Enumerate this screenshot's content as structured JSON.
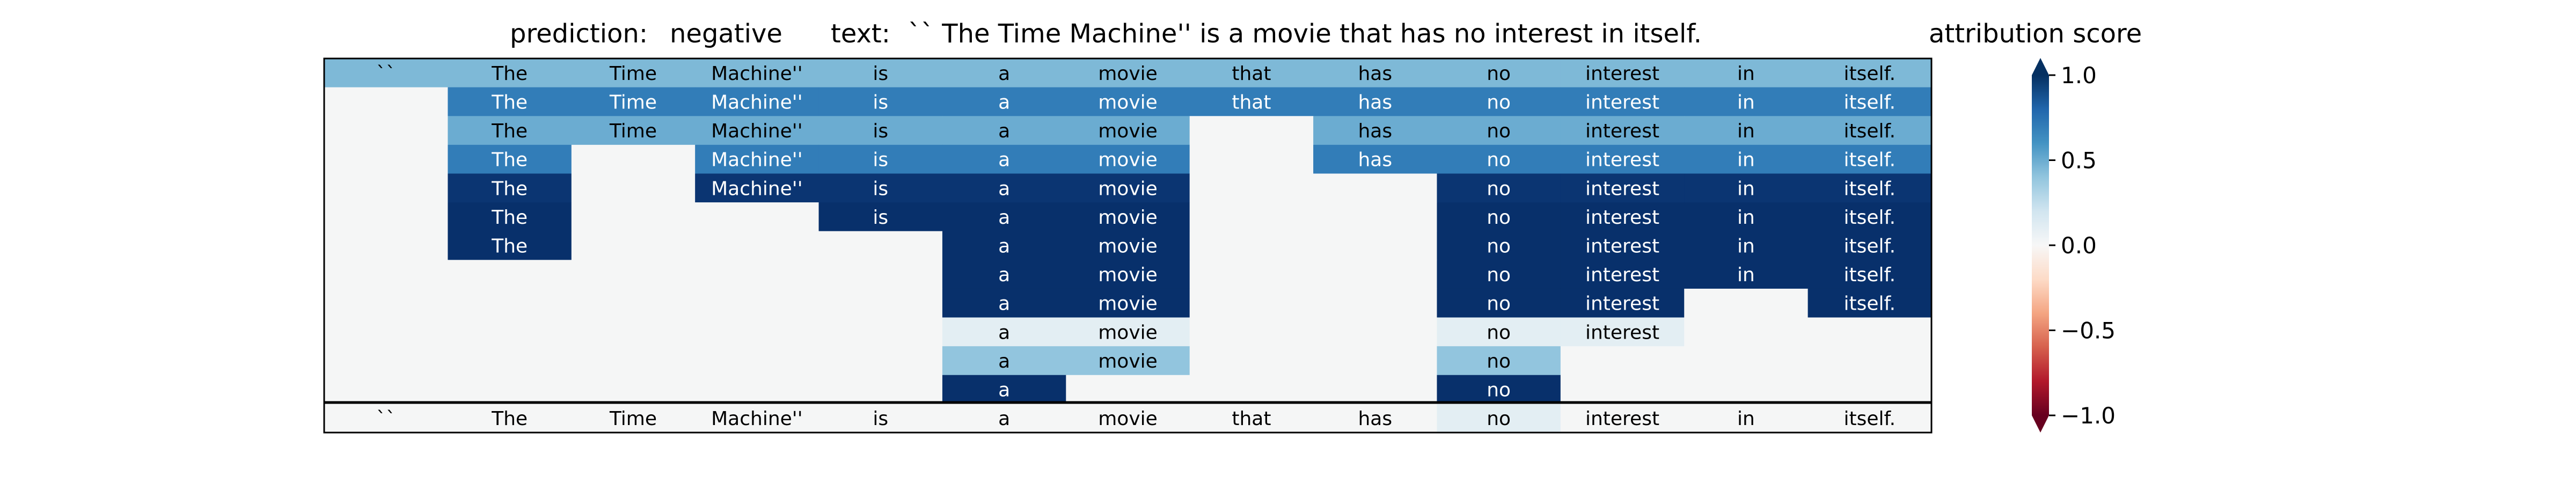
{
  "chart_data": {
    "type": "heatmap",
    "title": {
      "prediction_label": "prediction:",
      "prediction_value": "negative",
      "text_label": "text:",
      "text_value": "`` The Time Machine'' is a movie that has no interest in itself."
    },
    "colorbar": {
      "title": "attribution score",
      "range": [
        -1.0,
        1.0
      ],
      "ticks": [
        "1.0",
        "0.5",
        "0.0",
        "−0.5",
        "−1.0"
      ],
      "tick_values": [
        1.0,
        0.5,
        0.0,
        -0.5,
        -1.0
      ],
      "colormap": "RdBu",
      "extend": "both"
    },
    "tokens": [
      "``",
      "The",
      "Time",
      "Machine''",
      "is",
      "a",
      "movie",
      "that",
      "has",
      "no",
      "interest",
      "in",
      "itself."
    ],
    "hierarchy_rows": [
      {
        "cells": [
          {
            "text": "``",
            "value": 0.45
          },
          {
            "text": "The",
            "value": 0.45
          },
          {
            "text": "Time",
            "value": 0.45
          },
          {
            "text": "Machine''",
            "value": 0.45
          },
          {
            "text": "is",
            "value": 0.45
          },
          {
            "text": "a",
            "value": 0.45
          },
          {
            "text": "movie",
            "value": 0.45
          },
          {
            "text": "that",
            "value": 0.45
          },
          {
            "text": "has",
            "value": 0.45
          },
          {
            "text": "no",
            "value": 0.45
          },
          {
            "text": "interest",
            "value": 0.45
          },
          {
            "text": "in",
            "value": 0.45
          },
          {
            "text": "itself.",
            "value": 0.45
          }
        ]
      },
      {
        "cells": [
          {
            "text": "",
            "value": 0
          },
          {
            "text": "The",
            "value": 0.7
          },
          {
            "text": "Time",
            "value": 0.7
          },
          {
            "text": "Machine''",
            "value": 0.7
          },
          {
            "text": "is",
            "value": 0.7
          },
          {
            "text": "a",
            "value": 0.7
          },
          {
            "text": "movie",
            "value": 0.7
          },
          {
            "text": "that",
            "value": 0.7
          },
          {
            "text": "has",
            "value": 0.7
          },
          {
            "text": "no",
            "value": 0.7
          },
          {
            "text": "interest",
            "value": 0.7
          },
          {
            "text": "in",
            "value": 0.7
          },
          {
            "text": "itself.",
            "value": 0.7
          }
        ]
      },
      {
        "cells": [
          {
            "text": "",
            "value": 0
          },
          {
            "text": "The",
            "value": 0.5
          },
          {
            "text": "Time",
            "value": 0.5
          },
          {
            "text": "Machine''",
            "value": 0.5
          },
          {
            "text": "is",
            "value": 0.5
          },
          {
            "text": "a",
            "value": 0.5
          },
          {
            "text": "movie",
            "value": 0.5
          },
          {
            "text": "",
            "value": 0
          },
          {
            "text": "has",
            "value": 0.5
          },
          {
            "text": "no",
            "value": 0.5
          },
          {
            "text": "interest",
            "value": 0.5
          },
          {
            "text": "in",
            "value": 0.5
          },
          {
            "text": "itself.",
            "value": 0.5
          }
        ]
      },
      {
        "cells": [
          {
            "text": "",
            "value": 0
          },
          {
            "text": "The",
            "value": 0.7
          },
          {
            "text": "",
            "value": 0
          },
          {
            "text": "Machine''",
            "value": 0.7
          },
          {
            "text": "is",
            "value": 0.7
          },
          {
            "text": "a",
            "value": 0.7
          },
          {
            "text": "movie",
            "value": 0.7
          },
          {
            "text": "",
            "value": 0
          },
          {
            "text": "has",
            "value": 0.7
          },
          {
            "text": "no",
            "value": 0.7
          },
          {
            "text": "interest",
            "value": 0.7
          },
          {
            "text": "in",
            "value": 0.7
          },
          {
            "text": "itself.",
            "value": 0.7
          }
        ]
      },
      {
        "cells": [
          {
            "text": "",
            "value": 0
          },
          {
            "text": "The",
            "value": 0.98
          },
          {
            "text": "",
            "value": 0
          },
          {
            "text": "Machine''",
            "value": 0.98
          },
          {
            "text": "is",
            "value": 0.98
          },
          {
            "text": "a",
            "value": 0.98
          },
          {
            "text": "movie",
            "value": 0.98
          },
          {
            "text": "",
            "value": 0
          },
          {
            "text": "",
            "value": 0
          },
          {
            "text": "no",
            "value": 0.98
          },
          {
            "text": "interest",
            "value": 0.98
          },
          {
            "text": "in",
            "value": 0.98
          },
          {
            "text": "itself.",
            "value": 0.98
          }
        ]
      },
      {
        "cells": [
          {
            "text": "",
            "value": 0
          },
          {
            "text": "The",
            "value": 1.0
          },
          {
            "text": "",
            "value": 0
          },
          {
            "text": "",
            "value": 0
          },
          {
            "text": "is",
            "value": 1.0
          },
          {
            "text": "a",
            "value": 1.0
          },
          {
            "text": "movie",
            "value": 1.0
          },
          {
            "text": "",
            "value": 0
          },
          {
            "text": "",
            "value": 0
          },
          {
            "text": "no",
            "value": 1.0
          },
          {
            "text": "interest",
            "value": 1.0
          },
          {
            "text": "in",
            "value": 1.0
          },
          {
            "text": "itself.",
            "value": 1.0
          }
        ]
      },
      {
        "cells": [
          {
            "text": "",
            "value": 0
          },
          {
            "text": "The",
            "value": 1.0
          },
          {
            "text": "",
            "value": 0
          },
          {
            "text": "",
            "value": 0
          },
          {
            "text": "",
            "value": 0
          },
          {
            "text": "a",
            "value": 1.0
          },
          {
            "text": "movie",
            "value": 1.0
          },
          {
            "text": "",
            "value": 0
          },
          {
            "text": "",
            "value": 0
          },
          {
            "text": "no",
            "value": 1.0
          },
          {
            "text": "interest",
            "value": 1.0
          },
          {
            "text": "in",
            "value": 1.0
          },
          {
            "text": "itself.",
            "value": 1.0
          }
        ]
      },
      {
        "cells": [
          {
            "text": "",
            "value": 0
          },
          {
            "text": "",
            "value": 0
          },
          {
            "text": "",
            "value": 0
          },
          {
            "text": "",
            "value": 0
          },
          {
            "text": "",
            "value": 0
          },
          {
            "text": "a",
            "value": 1.0
          },
          {
            "text": "movie",
            "value": 1.0
          },
          {
            "text": "",
            "value": 0
          },
          {
            "text": "",
            "value": 0
          },
          {
            "text": "no",
            "value": 1.0
          },
          {
            "text": "interest",
            "value": 1.0
          },
          {
            "text": "in",
            "value": 1.0
          },
          {
            "text": "itself.",
            "value": 1.0
          }
        ]
      },
      {
        "cells": [
          {
            "text": "",
            "value": 0
          },
          {
            "text": "",
            "value": 0
          },
          {
            "text": "",
            "value": 0
          },
          {
            "text": "",
            "value": 0
          },
          {
            "text": "",
            "value": 0
          },
          {
            "text": "a",
            "value": 1.0
          },
          {
            "text": "movie",
            "value": 1.0
          },
          {
            "text": "",
            "value": 0
          },
          {
            "text": "",
            "value": 0
          },
          {
            "text": "no",
            "value": 1.0
          },
          {
            "text": "interest",
            "value": 1.0
          },
          {
            "text": "",
            "value": 0
          },
          {
            "text": "itself.",
            "value": 1.0
          }
        ]
      },
      {
        "cells": [
          {
            "text": "",
            "value": 0
          },
          {
            "text": "",
            "value": 0
          },
          {
            "text": "",
            "value": 0
          },
          {
            "text": "",
            "value": 0
          },
          {
            "text": "",
            "value": 0
          },
          {
            "text": "a",
            "value": 0.1
          },
          {
            "text": "movie",
            "value": 0.1
          },
          {
            "text": "",
            "value": 0
          },
          {
            "text": "",
            "value": 0
          },
          {
            "text": "no",
            "value": 0.1
          },
          {
            "text": "interest",
            "value": 0.1
          },
          {
            "text": "",
            "value": 0
          },
          {
            "text": "",
            "value": 0
          }
        ]
      },
      {
        "cells": [
          {
            "text": "",
            "value": 0
          },
          {
            "text": "",
            "value": 0
          },
          {
            "text": "",
            "value": 0
          },
          {
            "text": "",
            "value": 0
          },
          {
            "text": "",
            "value": 0
          },
          {
            "text": "a",
            "value": 0.4
          },
          {
            "text": "movie",
            "value": 0.4
          },
          {
            "text": "",
            "value": 0
          },
          {
            "text": "",
            "value": 0
          },
          {
            "text": "no",
            "value": 0.4
          },
          {
            "text": "",
            "value": 0
          },
          {
            "text": "",
            "value": 0
          },
          {
            "text": "",
            "value": 0
          }
        ]
      },
      {
        "cells": [
          {
            "text": "",
            "value": 0
          },
          {
            "text": "",
            "value": 0
          },
          {
            "text": "",
            "value": 0
          },
          {
            "text": "",
            "value": 0
          },
          {
            "text": "",
            "value": 0
          },
          {
            "text": "a",
            "value": 1.0
          },
          {
            "text": "",
            "value": 0
          },
          {
            "text": "",
            "value": 0
          },
          {
            "text": "",
            "value": 0
          },
          {
            "text": "no",
            "value": 1.0
          },
          {
            "text": "",
            "value": 0
          },
          {
            "text": "",
            "value": 0
          },
          {
            "text": "",
            "value": 0
          }
        ]
      }
    ],
    "bottom_row": {
      "cells": [
        {
          "text": "``",
          "value": 0
        },
        {
          "text": "The",
          "value": 0
        },
        {
          "text": "Time",
          "value": 0
        },
        {
          "text": "Machine''",
          "value": 0
        },
        {
          "text": "is",
          "value": 0
        },
        {
          "text": "a",
          "value": 0
        },
        {
          "text": "movie",
          "value": 0
        },
        {
          "text": "that",
          "value": 0
        },
        {
          "text": "has",
          "value": 0
        },
        {
          "text": "no",
          "value": 0.1
        },
        {
          "text": "interest",
          "value": 0
        },
        {
          "text": "in",
          "value": 0
        },
        {
          "text": "itself.",
          "value": 0
        }
      ]
    }
  }
}
